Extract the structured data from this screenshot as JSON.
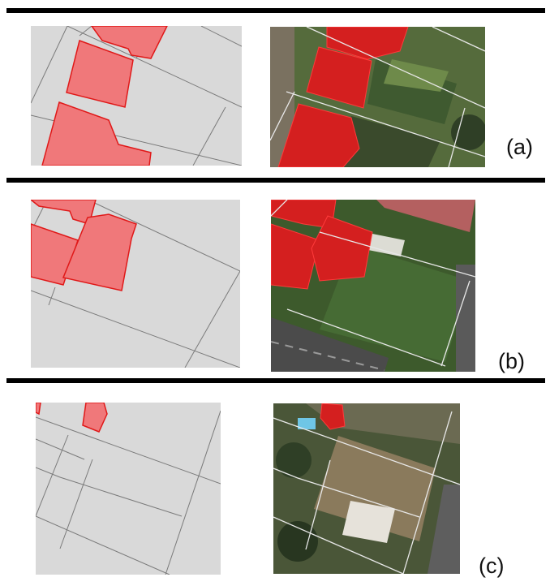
{
  "rows": [
    {
      "label": "(a)"
    },
    {
      "label": "(b)"
    },
    {
      "label": "(c)"
    }
  ],
  "colors": {
    "map_background": "#d9d9d9",
    "parcel_line": "#7a7a7a",
    "building_fill": "#f0787a",
    "building_stroke": "#e01818",
    "divider": "#000000"
  }
}
